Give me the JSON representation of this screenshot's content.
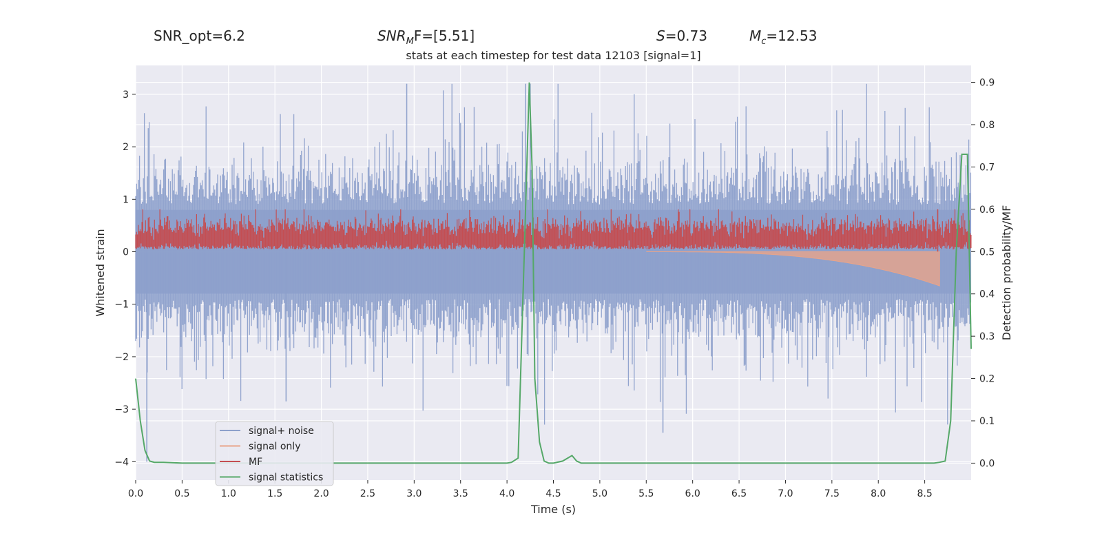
{
  "header": {
    "snr_opt": "SNR_opt=6.2",
    "snr_mf_base": "SNR",
    "snr_mf_sub": "M",
    "snr_mf_tail": "F=[5.51]",
    "s_sym": "S",
    "s_val": "=0.73",
    "mc_sym": "M",
    "mc_sub": "c",
    "mc_val": "=12.53"
  },
  "chart_data": {
    "type": "line",
    "title": "stats at each timestep for test data 12103 [signal=1]",
    "xlabel": "Time (s)",
    "ylabel_left": "Whitened strain",
    "ylabel_right": "Detection probability/MF",
    "xlim": [
      0.0,
      9.0
    ],
    "ylim_left": [
      -4.35,
      3.55
    ],
    "ylim_right": [
      -0.04,
      0.94
    ],
    "x_ticks": [
      "0.0",
      "0.5",
      "1.0",
      "1.5",
      "2.0",
      "2.5",
      "3.0",
      "3.5",
      "4.0",
      "4.5",
      "5.0",
      "5.5",
      "6.0",
      "6.5",
      "7.0",
      "7.5",
      "8.0",
      "8.5"
    ],
    "y_left_ticks": [
      "−4",
      "−3",
      "−2",
      "−1",
      "0",
      "1",
      "2",
      "3"
    ],
    "y_right_ticks": [
      "0.0",
      "0.1",
      "0.2",
      "0.3",
      "0.4",
      "0.5",
      "0.6",
      "0.7",
      "0.8",
      "0.9"
    ],
    "legend": {
      "placement": "lower-left",
      "entries": [
        "signal+ noise",
        "signal only",
        "MF",
        "signal statistics"
      ]
    },
    "colors": {
      "signal_noise": "#8da0cb",
      "signal_only": "#e8a48a",
      "mf": "#c44e52",
      "signal_statistics": "#55a868",
      "background": "#eaeaf2",
      "grid": "#ffffff"
    },
    "series": [
      {
        "name": "signal+ noise",
        "axis": "left",
        "style": "dense-noise",
        "typical_range": [
          -1.0,
          1.3
        ],
        "peak_max": 3.2,
        "peak_min": -4.0
      },
      {
        "name": "signal only",
        "axis": "left",
        "style": "chirp",
        "x_start": 5.5,
        "x_end": 8.66,
        "min_at_end": -0.65,
        "max_at_end": 0.0
      },
      {
        "name": "MF",
        "axis": "right",
        "style": "dense-noise",
        "typical_range": [
          0.505,
          0.56
        ],
        "peak_max": 0.6
      },
      {
        "name": "signal statistics",
        "axis": "right",
        "x": [
          0.0,
          0.05,
          0.1,
          0.15,
          0.2,
          0.3,
          0.5,
          1.0,
          2.0,
          3.0,
          4.0,
          4.05,
          4.12,
          4.2,
          4.24,
          4.27,
          4.3,
          4.35,
          4.4,
          4.45,
          4.5,
          4.6,
          4.7,
          4.75,
          4.8,
          5.0,
          6.0,
          7.0,
          8.0,
          8.6,
          8.66,
          8.72,
          8.78,
          8.84,
          8.9,
          8.96,
          9.0
        ],
        "y": [
          0.2,
          0.1,
          0.03,
          0.005,
          0.002,
          0.002,
          0.0,
          0.0,
          0.0,
          0.0,
          0.0,
          0.002,
          0.012,
          0.6,
          0.9,
          0.7,
          0.2,
          0.05,
          0.005,
          0.0,
          0.0,
          0.005,
          0.018,
          0.005,
          0.0,
          0.0,
          0.0,
          0.0,
          0.0,
          0.0,
          0.002,
          0.005,
          0.1,
          0.5,
          0.73,
          0.73,
          0.27
        ]
      }
    ]
  }
}
